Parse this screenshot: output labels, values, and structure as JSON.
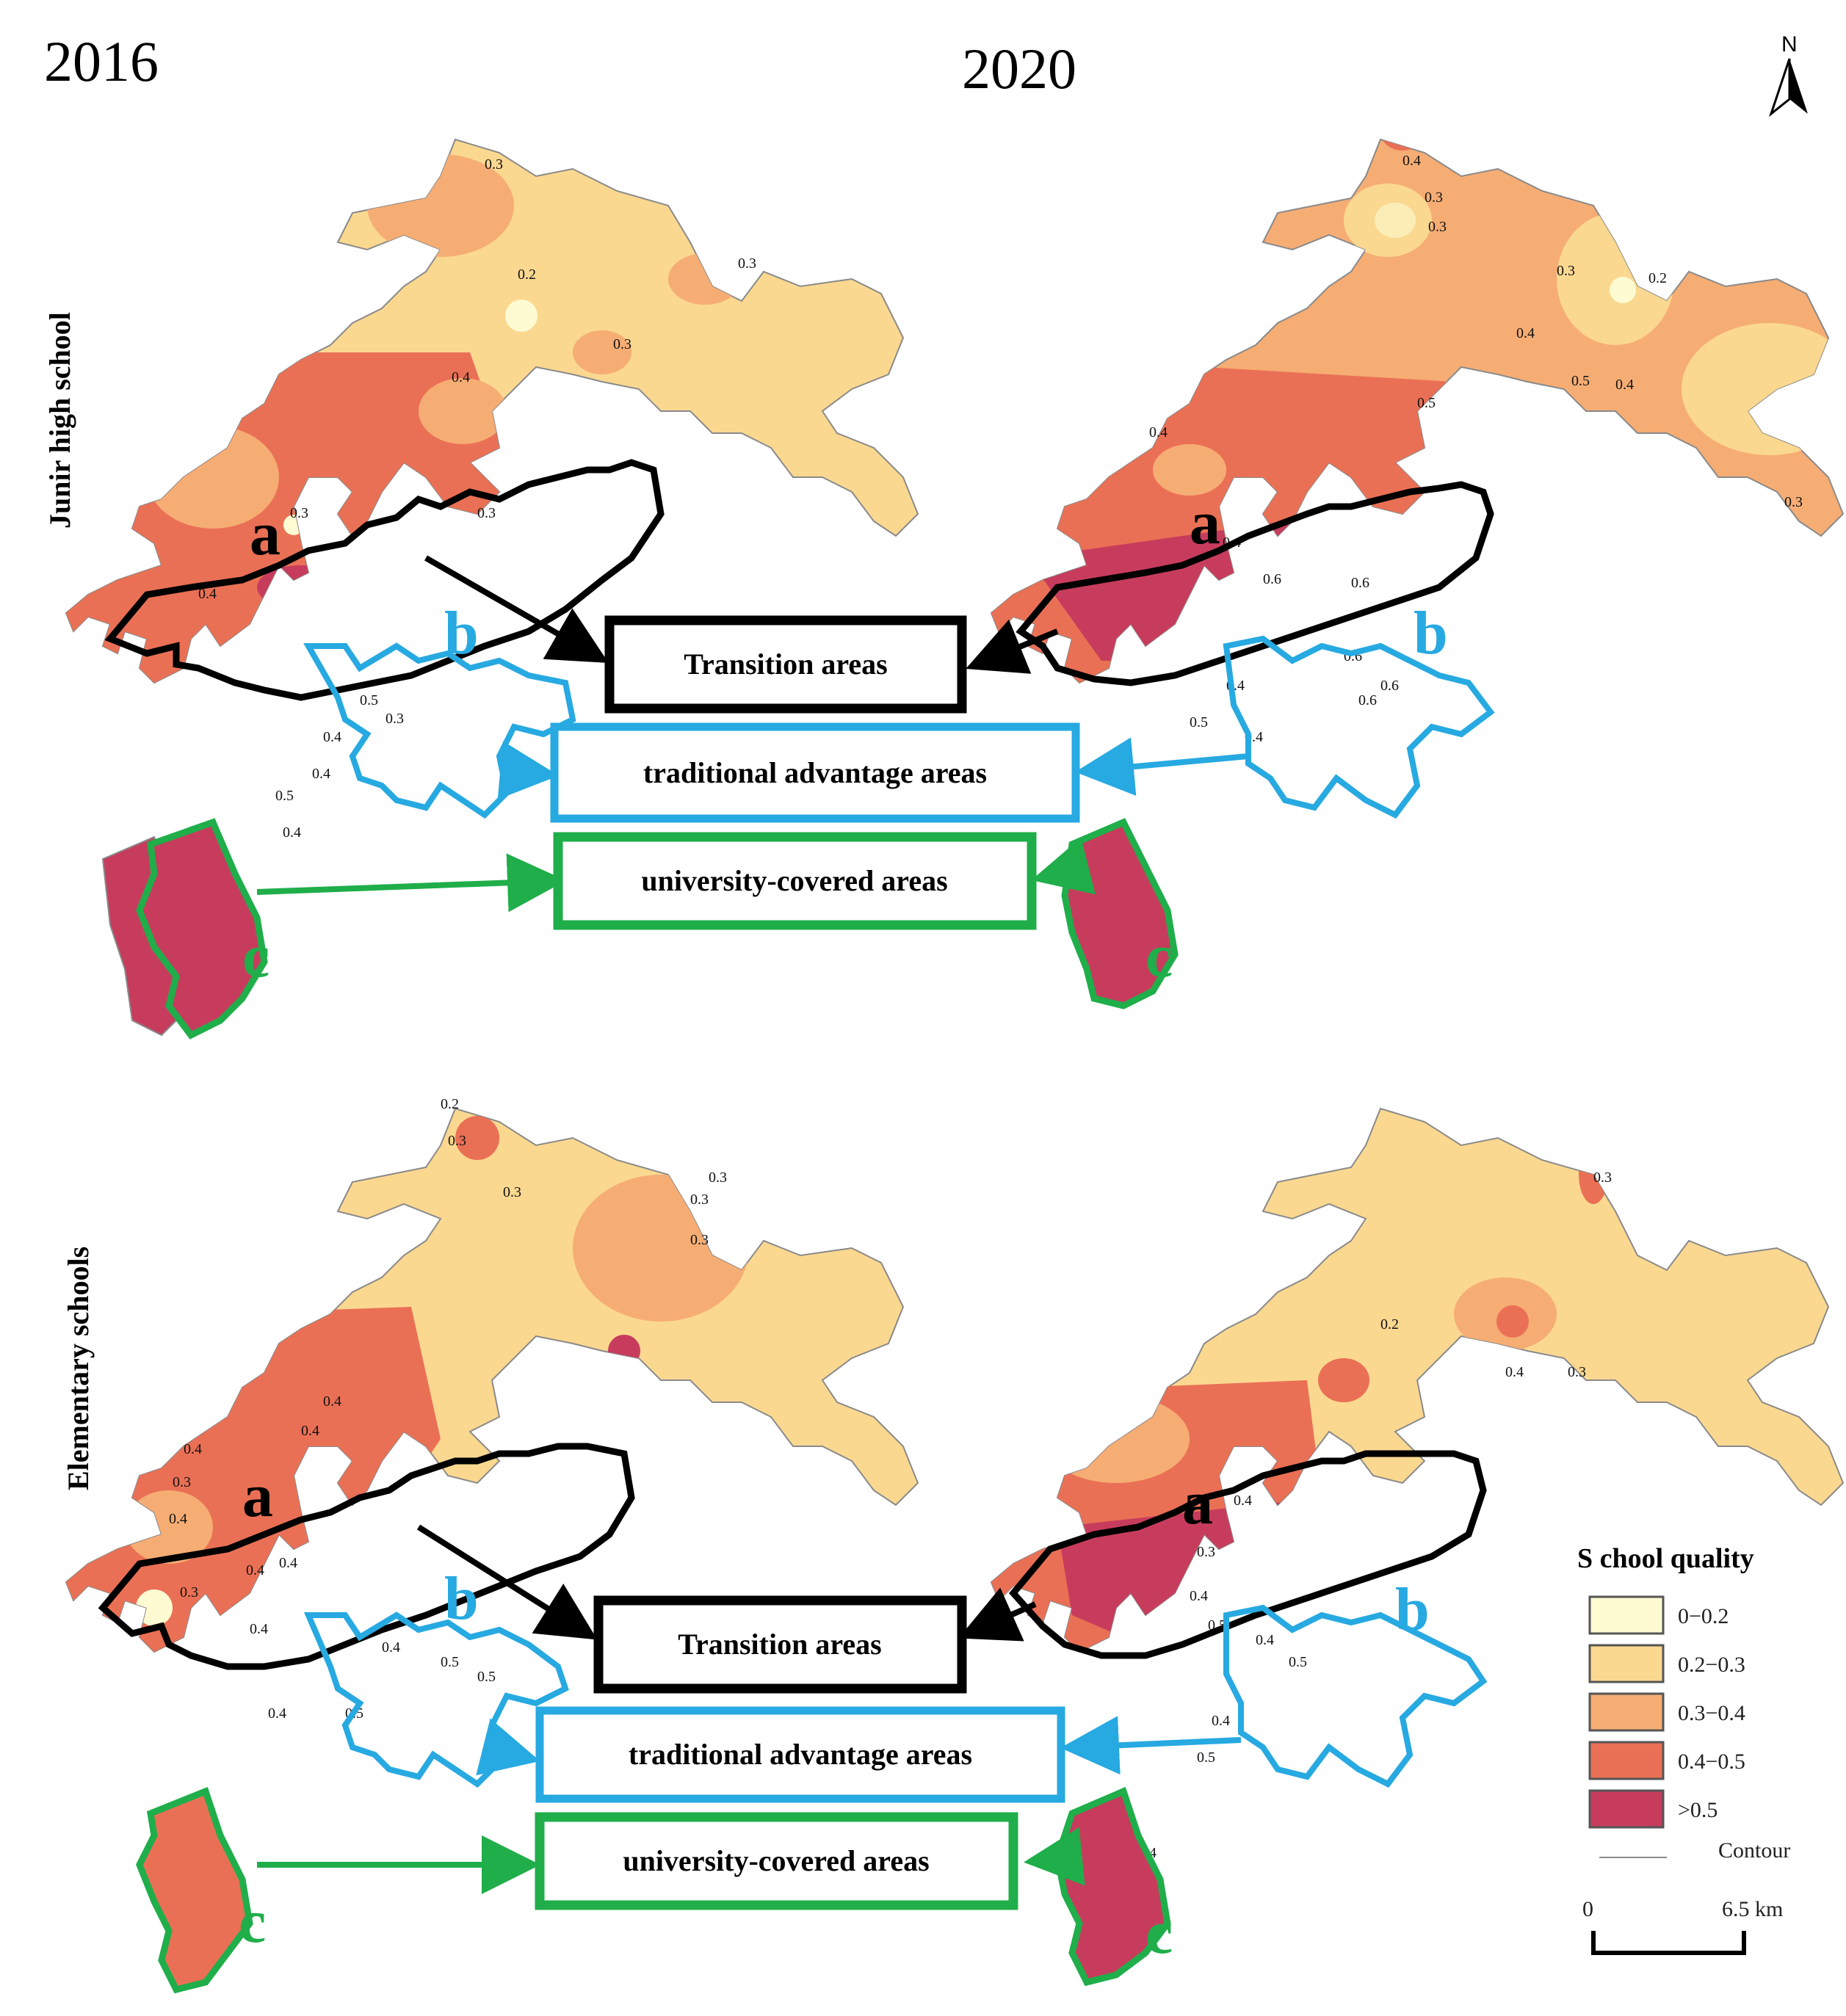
{
  "headings": {
    "year_left": "2016",
    "year_right": "2020",
    "row_top": "Junir high school",
    "row_bottom": "Elementary schools"
  },
  "boxes": {
    "transition": "Transition areas",
    "traditional": "traditional advantage areas",
    "university": "university-covered areas"
  },
  "region_letters": {
    "a": "a",
    "b": "b",
    "c": "c"
  },
  "colors": {
    "class_0": "#fefbd2",
    "class_1": "#fbd890",
    "class_2": "#f6ad74",
    "class_3": "#ea7055",
    "class_4": "#c73c5d",
    "transition_outline": "#000000",
    "traditional_outline": "#27a9e1",
    "university_outline": "#1fae4a",
    "contour": "#a77a6a"
  },
  "legend": {
    "title": "S chool quality",
    "items": [
      "0−0.2",
      "0.2−0.3",
      "0.3−0.4",
      "0.4−0.5",
      ">0.5"
    ],
    "contour_label": "Contour"
  },
  "scalebar": {
    "start": "0",
    "end": "6.5 km"
  },
  "north": "N",
  "maps": {
    "jh2016": {
      "contours": [
        "0.3",
        "0.2",
        "0.3",
        "0.3",
        "0.4",
        "0.3",
        "0.3",
        "0.4",
        "0.5",
        "0.4",
        "0.3",
        "0.4",
        "0.5",
        "0.4"
      ]
    },
    "jh2020": {
      "contours": [
        "0.4",
        "0.3",
        "0.3",
        "0.3",
        "0.2",
        "0.4",
        "0.5",
        "0.5",
        "0.4",
        "0.4",
        "0.4",
        "0.6",
        "0.6",
        "0.6",
        "0.5",
        "0.4",
        "0.4",
        "0.6",
        "0.6",
        "0.3"
      ]
    },
    "el2016": {
      "contours": [
        "0.2",
        "0.3",
        "0.3",
        "0.3",
        "0.3",
        "0.3",
        "0.4",
        "0.4",
        "0.4",
        "0.3",
        "0.4",
        "0.4",
        "0.4",
        "0.3",
        "0.4",
        "0.4",
        "0.5",
        "0.5",
        "0.4",
        "0.5"
      ]
    },
    "el2020": {
      "contours": [
        "0.2",
        "0.3",
        "0.4",
        "0.3",
        "0.4",
        "0.3",
        "0.4",
        "0.5",
        "0.4",
        "0.5",
        "0.4",
        "0.5",
        "0.4"
      ]
    }
  }
}
